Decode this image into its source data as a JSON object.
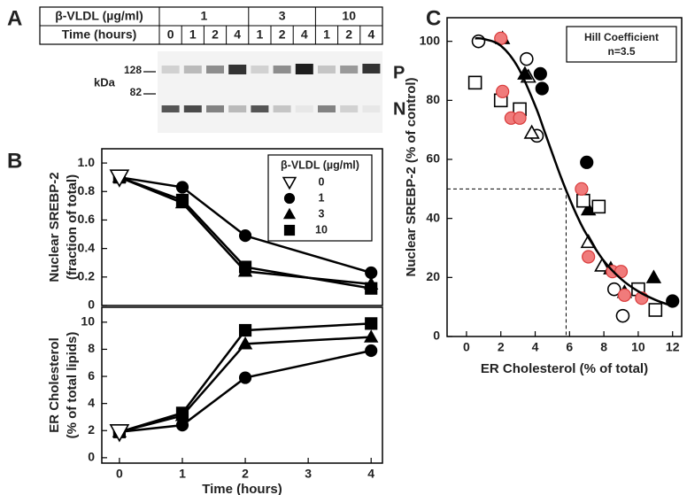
{
  "panel_labels": [
    "A",
    "B",
    "C"
  ],
  "blot": {
    "treatment_label": "β-VLDL (µg/ml)",
    "time_label": "Time (hours)",
    "doses": [
      "1",
      "3",
      "10"
    ],
    "times": [
      "0",
      "1",
      "2",
      "4",
      "1",
      "2",
      "4",
      "1",
      "2",
      "4"
    ],
    "kda_label": "kDa",
    "markers": [
      "128",
      "82"
    ],
    "bands": [
      "P",
      "N"
    ]
  },
  "chart_data": [
    {
      "type": "line",
      "ylabel": [
        "Nuclear SREBP-2",
        "(fraction of total)"
      ],
      "xlim": [
        -0.28,
        4.18
      ],
      "ylim": [
        0,
        1.1
      ],
      "yticks": [
        0,
        0.2,
        0.4,
        0.6,
        0.8,
        {
          "value": 1,
          "label": "1.0"
        }
      ],
      "legend": {
        "title": "β-VLDL (µg/ml)",
        "position": "upper right"
      },
      "series": [
        {
          "name": "0",
          "marker": "triangle-down-open",
          "color": "#000000",
          "x": [
            0
          ],
          "values": [
            0.9
          ]
        },
        {
          "name": "1",
          "marker": "circle",
          "color": "#000000",
          "x": [
            0,
            1,
            2,
            4
          ],
          "values": [
            0.9,
            0.83,
            0.49,
            0.23
          ]
        },
        {
          "name": "3",
          "marker": "triangle",
          "color": "#000000",
          "x": [
            0,
            1,
            2,
            4
          ],
          "values": [
            0.9,
            0.72,
            0.24,
            0.15
          ]
        },
        {
          "name": "10",
          "marker": "square",
          "color": "#000000",
          "x": [
            0,
            1,
            2,
            4
          ],
          "values": [
            0.9,
            0.74,
            0.27,
            0.12
          ]
        }
      ]
    },
    {
      "type": "line",
      "ylabel": [
        "ER Cholesterol",
        "(% of total lipids)"
      ],
      "xlabel": "Time (hours)",
      "xlim": [
        -0.28,
        4.18
      ],
      "xticks": [
        0,
        1,
        2,
        3,
        4
      ],
      "ylim": [
        -0.4,
        11.1
      ],
      "yticks": [
        0,
        2,
        4,
        6,
        8,
        10
      ],
      "series": [
        {
          "marker": "triangle-down-open",
          "color": "#000000",
          "x": [
            0
          ],
          "values": [
            1.9
          ]
        },
        {
          "marker": "circle",
          "color": "#000000",
          "x": [
            0,
            1,
            2,
            4
          ],
          "values": [
            1.9,
            2.4,
            5.9,
            7.9
          ]
        },
        {
          "marker": "triangle",
          "color": "#000000",
          "x": [
            0,
            1,
            2,
            4
          ],
          "values": [
            1.9,
            3.1,
            8.4,
            8.9
          ]
        },
        {
          "marker": "square",
          "color": "#000000",
          "x": [
            0,
            1,
            2,
            4
          ],
          "values": [
            1.9,
            3.3,
            9.4,
            9.9
          ]
        }
      ]
    },
    {
      "type": "scatter",
      "ylabel": "Nuclear SREBP-2 (% of control)",
      "xlabel": "ER Cholesterol (% of total)",
      "xlim": [
        -1.13,
        12.53
      ],
      "xticks": [
        0,
        2,
        4,
        6,
        8,
        10,
        12
      ],
      "ylim": [
        0,
        108
      ],
      "yticks": [
        0,
        20,
        40,
        60,
        80,
        100
      ],
      "annotation": [
        "Hill Coefficient",
        "n=3.5"
      ],
      "reference": {
        "x": 5.8,
        "y": 50
      },
      "fit": {
        "color": "#000000",
        "x": [
          0.5,
          1,
          2,
          3,
          4,
          4.5,
          5,
          5.5,
          6,
          6.5,
          7,
          8,
          9,
          10,
          11,
          12
        ],
        "values": [
          101,
          100.8,
          98.5,
          91.2,
          78.2,
          70.2,
          62,
          54,
          46.7,
          40.1,
          34.5,
          25.6,
          19.5,
          15.3,
          12.4,
          10.3
        ]
      },
      "series": [
        {
          "marker": "circle-open",
          "color": "#000000",
          "edgecolor": "#000000",
          "x": [
            0.7,
            3.5,
            4.1,
            8.6,
            9.1
          ],
          "values": [
            100,
            94,
            68,
            16,
            7
          ]
        },
        {
          "marker": "circle",
          "color": "#000000",
          "edgecolor": "#000000",
          "x": [
            4.3,
            4.4,
            7.0,
            12
          ],
          "values": [
            89,
            84,
            59,
            12
          ]
        },
        {
          "marker": "triangle-open",
          "color": "#000000",
          "edgecolor": "#000000",
          "x": [
            3.6,
            3.8,
            7.1,
            7.9
          ],
          "values": [
            88,
            69,
            32,
            24
          ]
        },
        {
          "marker": "triangle",
          "color": "#000000",
          "edgecolor": "#000000",
          "x": [
            2.1,
            3.4,
            7.1,
            8.4,
            9.2,
            10.9
          ],
          "values": [
            101,
            89,
            43,
            23,
            15,
            20
          ]
        },
        {
          "marker": "square-open",
          "color": "#000000",
          "edgecolor": "#000000",
          "x": [
            0.5,
            2.0,
            3.1,
            6.8,
            7.7,
            10.0,
            11.0
          ],
          "values": [
            86,
            80,
            77,
            46,
            44,
            16,
            9
          ]
        },
        {
          "marker": "circle",
          "color": "#f07b7b",
          "edgecolor": "#d83a3a",
          "x": [
            2.0,
            2.1,
            2.6,
            3.1,
            6.7,
            7.1,
            8.5,
            9.0,
            9.2,
            10.2
          ],
          "values": [
            101,
            83,
            74,
            74,
            50,
            27,
            22,
            22,
            14,
            13
          ]
        }
      ]
    }
  ]
}
